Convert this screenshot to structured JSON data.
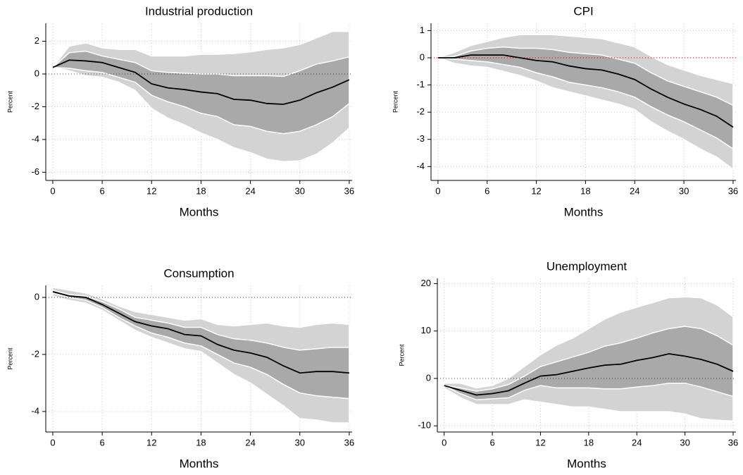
{
  "chart_data": [
    {
      "type": "line",
      "title": "Industrial production",
      "xlabel": "Months",
      "ylabel": "Percent",
      "x": [
        0,
        2,
        4,
        6,
        8,
        10,
        12,
        14,
        16,
        18,
        20,
        22,
        24,
        26,
        28,
        30,
        32,
        34,
        36
      ],
      "xlim": [
        -0.85,
        36.35
      ],
      "xticks": [
        0,
        6,
        12,
        18,
        24,
        30,
        36
      ],
      "ylim": [
        -6.5,
        3.1
      ],
      "yticks": [
        -6,
        -4,
        -2,
        0,
        2
      ],
      "grid": true,
      "reference_line": {
        "value": 0,
        "color": "#cc0000"
      },
      "bands": [
        {
          "color": "#d3d3d3",
          "upper": [
            0.4,
            1.7,
            1.9,
            1.6,
            1.5,
            1.5,
            1.1,
            1.1,
            1.1,
            1.2,
            1.2,
            1.25,
            1.35,
            1.5,
            1.6,
            1.8,
            2.2,
            2.6,
            2.6
          ],
          "lower": [
            0.4,
            0.2,
            -0.1,
            -0.2,
            -0.5,
            -1,
            -2.1,
            -2.7,
            -3.1,
            -3.6,
            -4,
            -4.5,
            -4.8,
            -5.2,
            -5.35,
            -5.3,
            -4.9,
            -4.2,
            -3.3
          ]
        },
        {
          "color": "#a9a9a9",
          "upper": [
            0.4,
            1.3,
            1.4,
            1.1,
            0.9,
            0.7,
            0.2,
            0.1,
            0.05,
            0,
            0,
            -0.1,
            -0.1,
            -0.1,
            -0.15,
            0.2,
            0.6,
            0.8,
            1.05
          ],
          "lower": [
            0.4,
            0.35,
            0.2,
            0.1,
            -0.2,
            -0.5,
            -1.3,
            -1.7,
            -2,
            -2.4,
            -2.6,
            -3.1,
            -3.2,
            -3.5,
            -3.65,
            -3.5,
            -3.1,
            -2.6,
            -1.8
          ]
        }
      ],
      "series": [
        {
          "color": "#000000",
          "values": [
            0.4,
            0.85,
            0.8,
            0.7,
            0.4,
            0.1,
            -0.6,
            -0.85,
            -0.95,
            -1.1,
            -1.2,
            -1.55,
            -1.6,
            -1.8,
            -1.85,
            -1.6,
            -1.15,
            -0.8,
            -0.35
          ]
        }
      ]
    },
    {
      "type": "line",
      "title": "CPI",
      "xlabel": "Months",
      "ylabel": "Percent",
      "x": [
        0,
        2,
        4,
        6,
        8,
        10,
        12,
        14,
        16,
        18,
        20,
        22,
        24,
        26,
        28,
        30,
        32,
        34,
        36
      ],
      "xlim": [
        -0.85,
        36.35
      ],
      "xticks": [
        0,
        6,
        12,
        18,
        24,
        30,
        36
      ],
      "ylim": [
        -4.51,
        1.27
      ],
      "yticks": [
        -4,
        -3,
        -2,
        -1,
        0,
        1
      ],
      "grid": true,
      "reference_line": {
        "value": 0,
        "color": "#cc0000"
      },
      "bands": [
        {
          "color": "#d3d3d3",
          "upper": [
            0,
            0.2,
            0.45,
            0.6,
            0.75,
            0.85,
            0.85,
            0.85,
            0.8,
            0.75,
            0.7,
            0.55,
            0.4,
            0.05,
            -0.25,
            -0.45,
            -0.65,
            -0.8,
            -0.95
          ],
          "lower": [
            0,
            -0.2,
            -0.3,
            -0.35,
            -0.5,
            -0.65,
            -0.85,
            -1.1,
            -1.25,
            -1.4,
            -1.55,
            -1.7,
            -1.9,
            -2.35,
            -2.7,
            -3.0,
            -3.35,
            -3.65,
            -4.1
          ]
        },
        {
          "color": "#a9a9a9",
          "upper": [
            0,
            0.05,
            0.25,
            0.35,
            0.4,
            0.35,
            0.35,
            0.3,
            0.2,
            0.15,
            0.1,
            -0.05,
            -0.2,
            -0.55,
            -0.85,
            -1.05,
            -1.25,
            -1.45,
            -1.75
          ],
          "lower": [
            0,
            -0.05,
            -0.1,
            -0.15,
            -0.25,
            -0.35,
            -0.55,
            -0.7,
            -0.9,
            -1.0,
            -1.1,
            -1.25,
            -1.45,
            -1.8,
            -2.1,
            -2.35,
            -2.65,
            -2.95,
            -3.35
          ]
        }
      ],
      "series": [
        {
          "color": "#000000",
          "values": [
            0,
            0,
            0.1,
            0.1,
            0.1,
            0,
            -0.1,
            -0.15,
            -0.3,
            -0.4,
            -0.45,
            -0.6,
            -0.8,
            -1.15,
            -1.45,
            -1.7,
            -1.9,
            -2.15,
            -2.55
          ]
        }
      ]
    },
    {
      "type": "line",
      "title": "Consumption",
      "xlabel": "Months",
      "ylabel": "Percent",
      "x": [
        0,
        2,
        4,
        6,
        8,
        10,
        12,
        14,
        16,
        18,
        20,
        22,
        24,
        26,
        28,
        30,
        32,
        34,
        36
      ],
      "xlim": [
        -0.85,
        36.35
      ],
      "xticks": [
        0,
        6,
        12,
        18,
        24,
        30,
        36
      ],
      "ylim": [
        -4.72,
        0.42
      ],
      "yticks": [
        -4,
        -2,
        0
      ],
      "grid": true,
      "reference_line": {
        "value": 0,
        "color": "#cc0000"
      },
      "bands": [
        {
          "color": "#d3d3d3",
          "upper": [
            0.35,
            0.25,
            0.15,
            -0.05,
            -0.3,
            -0.5,
            -0.6,
            -0.7,
            -0.8,
            -0.75,
            -0.95,
            -1.0,
            -0.95,
            -0.9,
            -1.0,
            -1.05,
            -0.95,
            -0.9,
            -0.95
          ],
          "lower": [
            0.05,
            -0.1,
            -0.2,
            -0.45,
            -0.8,
            -1.15,
            -1.4,
            -1.6,
            -1.8,
            -1.9,
            -2.3,
            -2.7,
            -3.0,
            -3.4,
            -3.8,
            -4.25,
            -4.3,
            -4.4,
            -4.4
          ]
        },
        {
          "color": "#a9a9a9",
          "upper": [
            0.25,
            0.1,
            0.05,
            -0.15,
            -0.4,
            -0.7,
            -0.8,
            -0.9,
            -1.05,
            -1.05,
            -1.3,
            -1.45,
            -1.5,
            -1.6,
            -1.75,
            -1.85,
            -1.8,
            -1.75,
            -1.75
          ],
          "lower": [
            0.15,
            0,
            -0.1,
            -0.35,
            -0.7,
            -1.0,
            -1.25,
            -1.4,
            -1.6,
            -1.7,
            -2.0,
            -2.3,
            -2.45,
            -2.7,
            -3.05,
            -3.35,
            -3.45,
            -3.5,
            -3.55
          ]
        }
      ],
      "series": [
        {
          "color": "#000000",
          "values": [
            0.2,
            0.05,
            0,
            -0.25,
            -0.55,
            -0.85,
            -1.0,
            -1.1,
            -1.3,
            -1.35,
            -1.65,
            -1.85,
            -1.95,
            -2.1,
            -2.4,
            -2.65,
            -2.6,
            -2.6,
            -2.65
          ]
        }
      ]
    },
    {
      "type": "line",
      "title": "Unemployment",
      "xlabel": "Months",
      "ylabel": "Percent",
      "x": [
        0,
        2,
        4,
        6,
        8,
        10,
        12,
        14,
        16,
        18,
        20,
        22,
        24,
        26,
        28,
        30,
        32,
        34,
        36
      ],
      "xlim": [
        -0.85,
        36.35
      ],
      "xticks": [
        0,
        6,
        12,
        18,
        24,
        30,
        36
      ],
      "ylim": [
        -11.3,
        21.1
      ],
      "yticks": [
        -10,
        0,
        10,
        20
      ],
      "grid": true,
      "reference_line": {
        "value": 0,
        "color": "#cc0000"
      },
      "bands": [
        {
          "color": "#d3d3d3",
          "upper": [
            -1,
            -1,
            -2,
            -1.5,
            0,
            2.5,
            5,
            7,
            8.5,
            10.5,
            12.5,
            14,
            15,
            16,
            17,
            17.2,
            17,
            15.5,
            13
          ],
          "lower": [
            -2,
            -4,
            -5.5,
            -5.5,
            -5.5,
            -4.5,
            -5,
            -5.5,
            -6,
            -6,
            -6.5,
            -7,
            -7,
            -7,
            -7,
            -7.5,
            -8.5,
            -8.8,
            -9
          ]
        },
        {
          "color": "#a9a9a9",
          "upper": [
            -1.5,
            -2,
            -2.7,
            -2.2,
            -1.3,
            0.5,
            2.5,
            3.5,
            4.5,
            5.5,
            6.8,
            7.5,
            8.5,
            9.6,
            10.5,
            11,
            10.5,
            9,
            7
          ],
          "lower": [
            -1.5,
            -3.2,
            -4.5,
            -4.3,
            -4.1,
            -2.5,
            -1.5,
            -2,
            -2,
            -2,
            -2.2,
            -2.2,
            -1.8,
            -1.5,
            -1,
            -1,
            -1.8,
            -2.8,
            -3.8
          ]
        }
      ],
      "series": [
        {
          "color": "#000000",
          "values": [
            -1.5,
            -2.5,
            -3.5,
            -3.2,
            -2.6,
            -1,
            0.5,
            0.8,
            1.5,
            2.2,
            2.8,
            3.0,
            3.8,
            4.4,
            5.2,
            4.7,
            4.0,
            3.0,
            1.5
          ]
        }
      ]
    }
  ]
}
